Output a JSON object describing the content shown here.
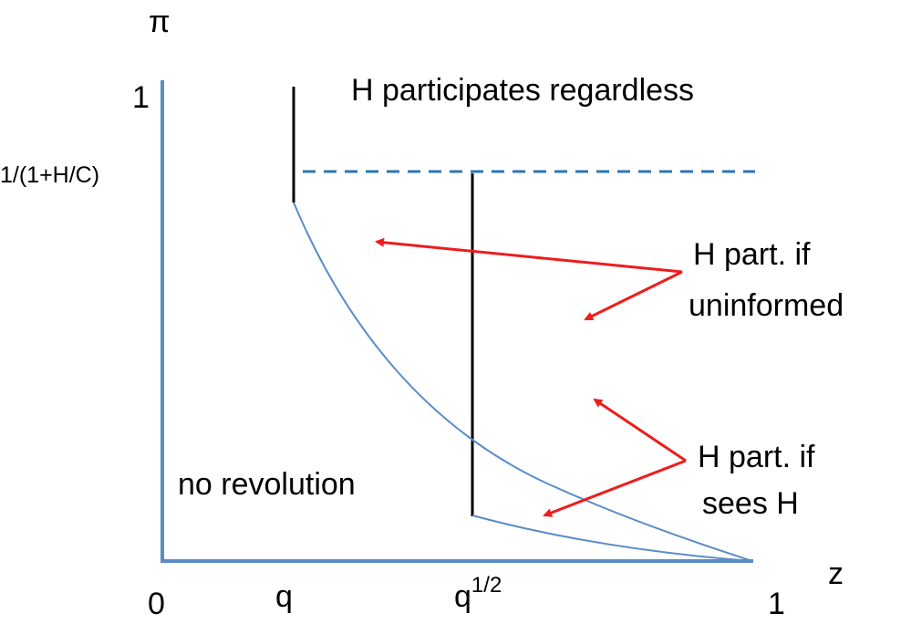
{
  "axes": {
    "y_label": "π",
    "x_label": "z",
    "y_top": "1",
    "y_threshold": "1/(1+H/C)",
    "origin": "0",
    "x_end": "1",
    "x_q": "q",
    "x_sqrt_q": {
      "base": "q",
      "sup": "1/2"
    }
  },
  "regions": {
    "top": "H participates regardless",
    "uninformed": [
      "H part. if",
      "uninformed"
    ],
    "sees_h": [
      "H part. if",
      "sees H"
    ],
    "bottom": "no revolution"
  }
}
